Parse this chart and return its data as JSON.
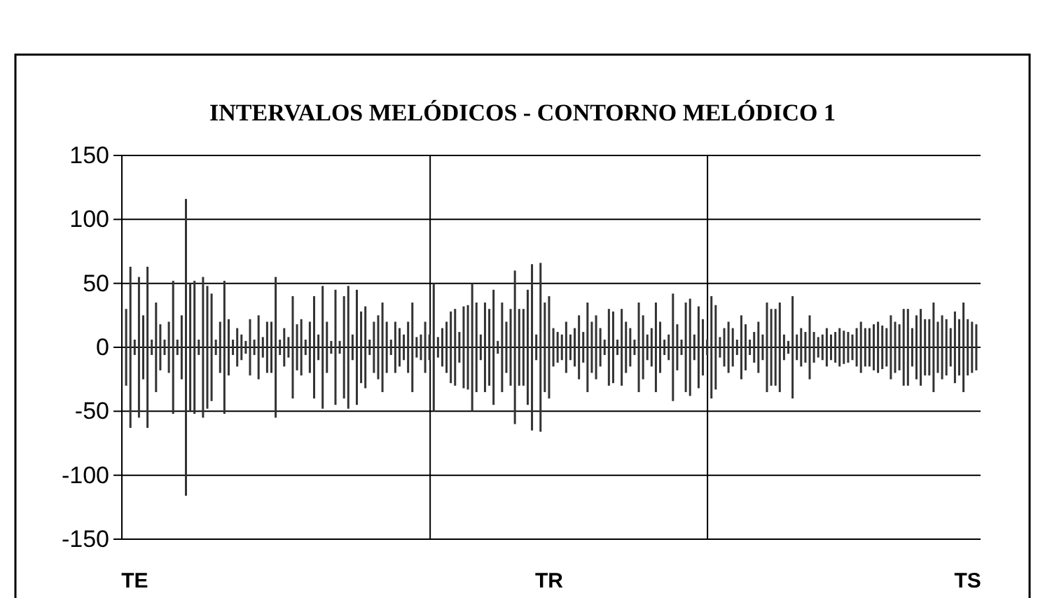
{
  "chart_data": {
    "type": "bar",
    "stacked": true,
    "title": "INTERVALOS MELÓDICOS - CONTORNO MELÓDICO 1",
    "categories": [
      null,
      null,
      "TE",
      null,
      null,
      null,
      null,
      null,
      null,
      null,
      null,
      null,
      null,
      null,
      null,
      null,
      null,
      null,
      null,
      null,
      null,
      null,
      null,
      null,
      null,
      null,
      null,
      null,
      null,
      null,
      null,
      null,
      null,
      null,
      null,
      null,
      null,
      null,
      null,
      null,
      null,
      null,
      null,
      null,
      null,
      null,
      null,
      null,
      null,
      null,
      null,
      null,
      null,
      null,
      null,
      null,
      null,
      null,
      null,
      null,
      null,
      null,
      null,
      null,
      null,
      null,
      null,
      null,
      null,
      null,
      null,
      null,
      null,
      null,
      null,
      null,
      null,
      null,
      null,
      null,
      null,
      null,
      null,
      null,
      null,
      null,
      null,
      null,
      null,
      null,
      null,
      null,
      null,
      null,
      null,
      null,
      null,
      null,
      null,
      "TR",
      null,
      null,
      null,
      null,
      null,
      null,
      null,
      null,
      null,
      null,
      null,
      null,
      null,
      null,
      null,
      null,
      null,
      null,
      null,
      null,
      null,
      null,
      null,
      null,
      null,
      null,
      null,
      null,
      null,
      null,
      null,
      null,
      null,
      null,
      null,
      null,
      null,
      null,
      null,
      null,
      null,
      null,
      null,
      null,
      null,
      null,
      null,
      null,
      null,
      null,
      null,
      null,
      null,
      null,
      null,
      null,
      null,
      null,
      null,
      null,
      null,
      null,
      null,
      null,
      null,
      null,
      null,
      null,
      null,
      null,
      null,
      null,
      null,
      null,
      null,
      null,
      null,
      null,
      null,
      null,
      null,
      null,
      null,
      null,
      null,
      null,
      null,
      null,
      null,
      null,
      null,
      null,
      null,
      null,
      null,
      null,
      null,
      "TS",
      null,
      null
    ],
    "series": [
      {
        "color": "#333333",
        "values": [
          30,
          63,
          6,
          55,
          25,
          63,
          6,
          35,
          18,
          6,
          20,
          52,
          6,
          25,
          116,
          50,
          52,
          6,
          55,
          48,
          42,
          6,
          20,
          52,
          22,
          6,
          15,
          10,
          5,
          22,
          6,
          25,
          8,
          20,
          20,
          55,
          6,
          15,
          8,
          40,
          18,
          22,
          6,
          20,
          40,
          10,
          48,
          20,
          5,
          45,
          5,
          40,
          48,
          10,
          45,
          28,
          32,
          6,
          20,
          25,
          35,
          20,
          6,
          20,
          15,
          10,
          20,
          35,
          8,
          10,
          20,
          10,
          50,
          8,
          15,
          20,
          28,
          30,
          12,
          32,
          33,
          50,
          35,
          10,
          35,
          30,
          45,
          5,
          35,
          20,
          30,
          60,
          30,
          30,
          45,
          65,
          10,
          66,
          35,
          40,
          15,
          12,
          10,
          20,
          10,
          15,
          25,
          12,
          35,
          20,
          25,
          15,
          6,
          30,
          28,
          6,
          30,
          20,
          15,
          6,
          35,
          25,
          10,
          15,
          35,
          20,
          6,
          10,
          42,
          18,
          6,
          35,
          38,
          10,
          32,
          22,
          6,
          40,
          33,
          8,
          15,
          20,
          15,
          6,
          25,
          18,
          6,
          12,
          20,
          10,
          35,
          30,
          30,
          35,
          10,
          5,
          40,
          10,
          15,
          12,
          25,
          12,
          8,
          10,
          15,
          10,
          12,
          15,
          13,
          12,
          10,
          15,
          20,
          15,
          15,
          18,
          20,
          17,
          15,
          25,
          20,
          18,
          30,
          30,
          15,
          25,
          30,
          22,
          22,
          35,
          20,
          25,
          22,
          15,
          28,
          22,
          35,
          22,
          20,
          18
        ]
      },
      {
        "color": "#333333",
        "values": [
          -30,
          -63,
          -6,
          -55,
          -25,
          -63,
          -6,
          -35,
          -18,
          -6,
          -20,
          -52,
          -6,
          -25,
          -116,
          -50,
          -52,
          -6,
          -55,
          -48,
          -42,
          -6,
          -20,
          -52,
          -22,
          -6,
          -15,
          -10,
          -5,
          -22,
          -6,
          -25,
          -8,
          -20,
          -20,
          -55,
          -6,
          -15,
          -8,
          -40,
          -18,
          -22,
          -6,
          -20,
          -40,
          -10,
          -48,
          -20,
          -5,
          -45,
          -5,
          -40,
          -48,
          -10,
          -45,
          -28,
          -32,
          -6,
          -20,
          -25,
          -35,
          -20,
          -6,
          -20,
          -15,
          -10,
          -20,
          -35,
          -8,
          -10,
          -20,
          -10,
          -50,
          -8,
          -15,
          -20,
          -28,
          -30,
          -12,
          -32,
          -33,
          -50,
          -35,
          -10,
          -35,
          -30,
          -45,
          -5,
          -35,
          -20,
          -30,
          -60,
          -30,
          -30,
          -45,
          -65,
          -10,
          -66,
          -35,
          -40,
          -15,
          -12,
          -10,
          -20,
          -10,
          -15,
          -25,
          -12,
          -35,
          -20,
          -25,
          -15,
          -6,
          -30,
          -28,
          -6,
          -30,
          -20,
          -15,
          -6,
          -35,
          -25,
          -10,
          -15,
          -35,
          -20,
          -6,
          -10,
          -42,
          -18,
          -6,
          -35,
          -38,
          -10,
          -32,
          -22,
          -6,
          -40,
          -33,
          -8,
          -15,
          -20,
          -15,
          -6,
          -25,
          -18,
          -6,
          -12,
          -20,
          -10,
          -35,
          -30,
          -30,
          -35,
          -10,
          -5,
          -40,
          -10,
          -15,
          -12,
          -25,
          -12,
          -8,
          -10,
          -15,
          -10,
          -12,
          -15,
          -13,
          -12,
          -10,
          -15,
          -20,
          -15,
          -15,
          -18,
          -20,
          -17,
          -15,
          -25,
          -20,
          -18,
          -30,
          -30,
          -15,
          -25,
          -30,
          -22,
          -22,
          -35,
          -20,
          -25,
          -22,
          -15,
          -28,
          -22,
          -35,
          -22,
          -20,
          -18
        ]
      }
    ],
    "ylim": [
      -150,
      150
    ],
    "yticks": [
      -150,
      -100,
      -50,
      0,
      50,
      100,
      150
    ],
    "grid": "y"
  }
}
